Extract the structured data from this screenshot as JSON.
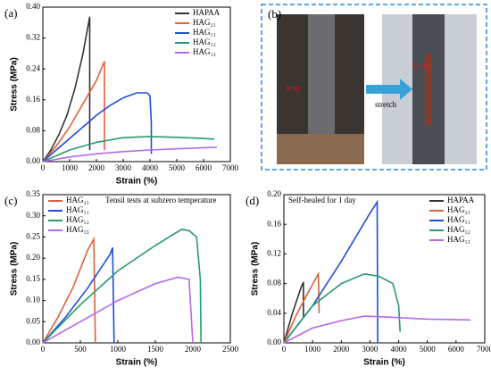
{
  "chart_data": [
    {
      "type": "line",
      "label": "(a)",
      "xlabel": "Strain (%)",
      "ylabel": "Stress (MPa)",
      "legend": "upper right",
      "xlim": [
        0,
        7000
      ],
      "xticks": [
        0,
        1000,
        2000,
        3000,
        4000,
        5000,
        6000,
        7000
      ],
      "ylim": [
        0,
        0.4
      ],
      "yticks": [
        {
          "value": 0,
          "label": "0.00"
        },
        {
          "value": 0.08,
          "label": "0.08"
        },
        {
          "value": 0.16,
          "label": "0.16"
        },
        {
          "value": 0.24,
          "label": "0.24"
        },
        {
          "value": 0.32,
          "label": "0.32"
        },
        {
          "value": 0.4,
          "label": "0.40"
        }
      ],
      "series": [
        {
          "name": "HAPAA",
          "color": "#333333",
          "x": [
            0,
            300,
            600,
            900,
            1200,
            1500,
            1750,
            1750
          ],
          "values": [
            0,
            0.03,
            0.07,
            0.12,
            0.19,
            0.28,
            0.375,
            0.03
          ]
        },
        {
          "name": "HAG₂₁",
          "color": "#e0603a",
          "x": [
            0,
            500,
            1000,
            1500,
            2000,
            2300,
            2300
          ],
          "values": [
            0,
            0.04,
            0.09,
            0.15,
            0.21,
            0.26,
            0.03
          ]
        },
        {
          "name": "HAG₁₁",
          "color": "#1f4fd0",
          "x": [
            0,
            500,
            1000,
            1500,
            2000,
            2500,
            3000,
            3500,
            3900,
            4000,
            4050,
            4050
          ],
          "values": [
            0,
            0.03,
            0.06,
            0.09,
            0.12,
            0.145,
            0.165,
            0.178,
            0.178,
            0.17,
            0.1,
            0.02
          ]
        },
        {
          "name": "HAG₁₂",
          "color": "#2a9a6a",
          "x": [
            0,
            1000,
            2000,
            3000,
            4000,
            5000,
            6000,
            6400
          ],
          "values": [
            0,
            0.03,
            0.05,
            0.062,
            0.065,
            0.063,
            0.06,
            0.058
          ]
        },
        {
          "name": "HAG₁₃",
          "color": "#b469e8",
          "x": [
            0,
            1000,
            2000,
            3000,
            4000,
            5000,
            6000,
            6500
          ],
          "values": [
            0,
            0.012,
            0.02,
            0.026,
            0.03,
            0.033,
            0.036,
            0.037
          ]
        }
      ]
    },
    {
      "type": "line",
      "label": "(c)",
      "xlabel": "Strain (%)",
      "ylabel": "Stress (MPa)",
      "legend": "upper left",
      "annotation": "Tensil tests at subzero temperature",
      "xlim": [
        0,
        2500
      ],
      "xticks": [
        0,
        500,
        1000,
        1500,
        2000,
        2500
      ],
      "ylim": [
        0,
        0.35
      ],
      "yticks": [
        {
          "value": 0,
          "label": "0.00"
        },
        {
          "value": 0.05,
          "label": "0.05"
        },
        {
          "value": 0.1,
          "label": "0.10"
        },
        {
          "value": 0.15,
          "label": "0.15"
        },
        {
          "value": 0.2,
          "label": "0.20"
        },
        {
          "value": 0.25,
          "label": "0.25"
        },
        {
          "value": 0.3,
          "label": "0.30"
        },
        {
          "value": 0.35,
          "label": "0.35"
        }
      ],
      "series": [
        {
          "name": "HAG₂₁",
          "color": "#e0603a",
          "x": [
            0,
            200,
            400,
            600,
            680,
            700
          ],
          "values": [
            0,
            0.06,
            0.13,
            0.22,
            0.245,
            0
          ]
        },
        {
          "name": "HAG₁₁",
          "color": "#1f4fd0",
          "x": [
            0,
            300,
            600,
            900,
            930,
            950
          ],
          "values": [
            0,
            0.06,
            0.13,
            0.21,
            0.225,
            0
          ]
        },
        {
          "name": "HAG₁₂",
          "color": "#2a9a6a",
          "x": [
            0,
            500,
            1000,
            1500,
            1850,
            1950,
            2050,
            2100,
            2110
          ],
          "values": [
            0,
            0.09,
            0.17,
            0.23,
            0.268,
            0.265,
            0.25,
            0.15,
            0
          ]
        },
        {
          "name": "HAG₁₃",
          "color": "#b469e8",
          "x": [
            0,
            500,
            1000,
            1500,
            1800,
            1950,
            2000
          ],
          "values": [
            0,
            0.05,
            0.1,
            0.14,
            0.155,
            0.15,
            0
          ]
        }
      ]
    },
    {
      "type": "line",
      "label": "(d)",
      "xlabel": "Strain (%)",
      "ylabel": "Stress (MPa)",
      "legend": "upper right",
      "annotation": "Self-healed for 1 day",
      "xlim": [
        0,
        7000
      ],
      "xticks": [
        0,
        1000,
        2000,
        3000,
        4000,
        5000,
        6000,
        7000
      ],
      "ylim": [
        0,
        0.2
      ],
      "yticks": [
        {
          "value": 0,
          "label": "0.00"
        },
        {
          "value": 0.04,
          "label": "0.04"
        },
        {
          "value": 0.08,
          "label": "0.08"
        },
        {
          "value": 0.12,
          "label": "0.12"
        },
        {
          "value": 0.16,
          "label": "0.16"
        },
        {
          "value": 0.2,
          "label": "0.20"
        }
      ],
      "series": [
        {
          "name": "HAPAA",
          "color": "#333333",
          "x": [
            0,
            300,
            600,
            680,
            680
          ],
          "values": [
            0,
            0.04,
            0.075,
            0.082,
            0.035
          ]
        },
        {
          "name": "HAG₂₁",
          "color": "#e0603a",
          "x": [
            0,
            400,
            800,
            1200,
            1230
          ],
          "values": [
            0,
            0.035,
            0.065,
            0.093,
            0.04
          ]
        },
        {
          "name": "HAG₁₁",
          "color": "#1f4fd0",
          "x": [
            0,
            1000,
            2000,
            3000,
            3250,
            3270
          ],
          "values": [
            0,
            0.05,
            0.11,
            0.175,
            0.19,
            0
          ]
        },
        {
          "name": "HAG₁₂",
          "color": "#2a9a6a",
          "x": [
            0,
            1000,
            2000,
            2800,
            3300,
            3800,
            4000,
            4050
          ],
          "values": [
            0,
            0.05,
            0.08,
            0.093,
            0.09,
            0.08,
            0.05,
            0.015
          ]
        },
        {
          "name": "HAG₁₃",
          "color": "#b469e8",
          "x": [
            0,
            1000,
            2000,
            2800,
            3500,
            5000,
            6500
          ],
          "values": [
            0,
            0.02,
            0.03,
            0.036,
            0.035,
            0.032,
            0.031
          ]
        }
      ]
    }
  ],
  "photo": {
    "label": "(b)",
    "left_text": "λ=0",
    "arrow_text": "stretch",
    "right_text": "λ=10"
  }
}
